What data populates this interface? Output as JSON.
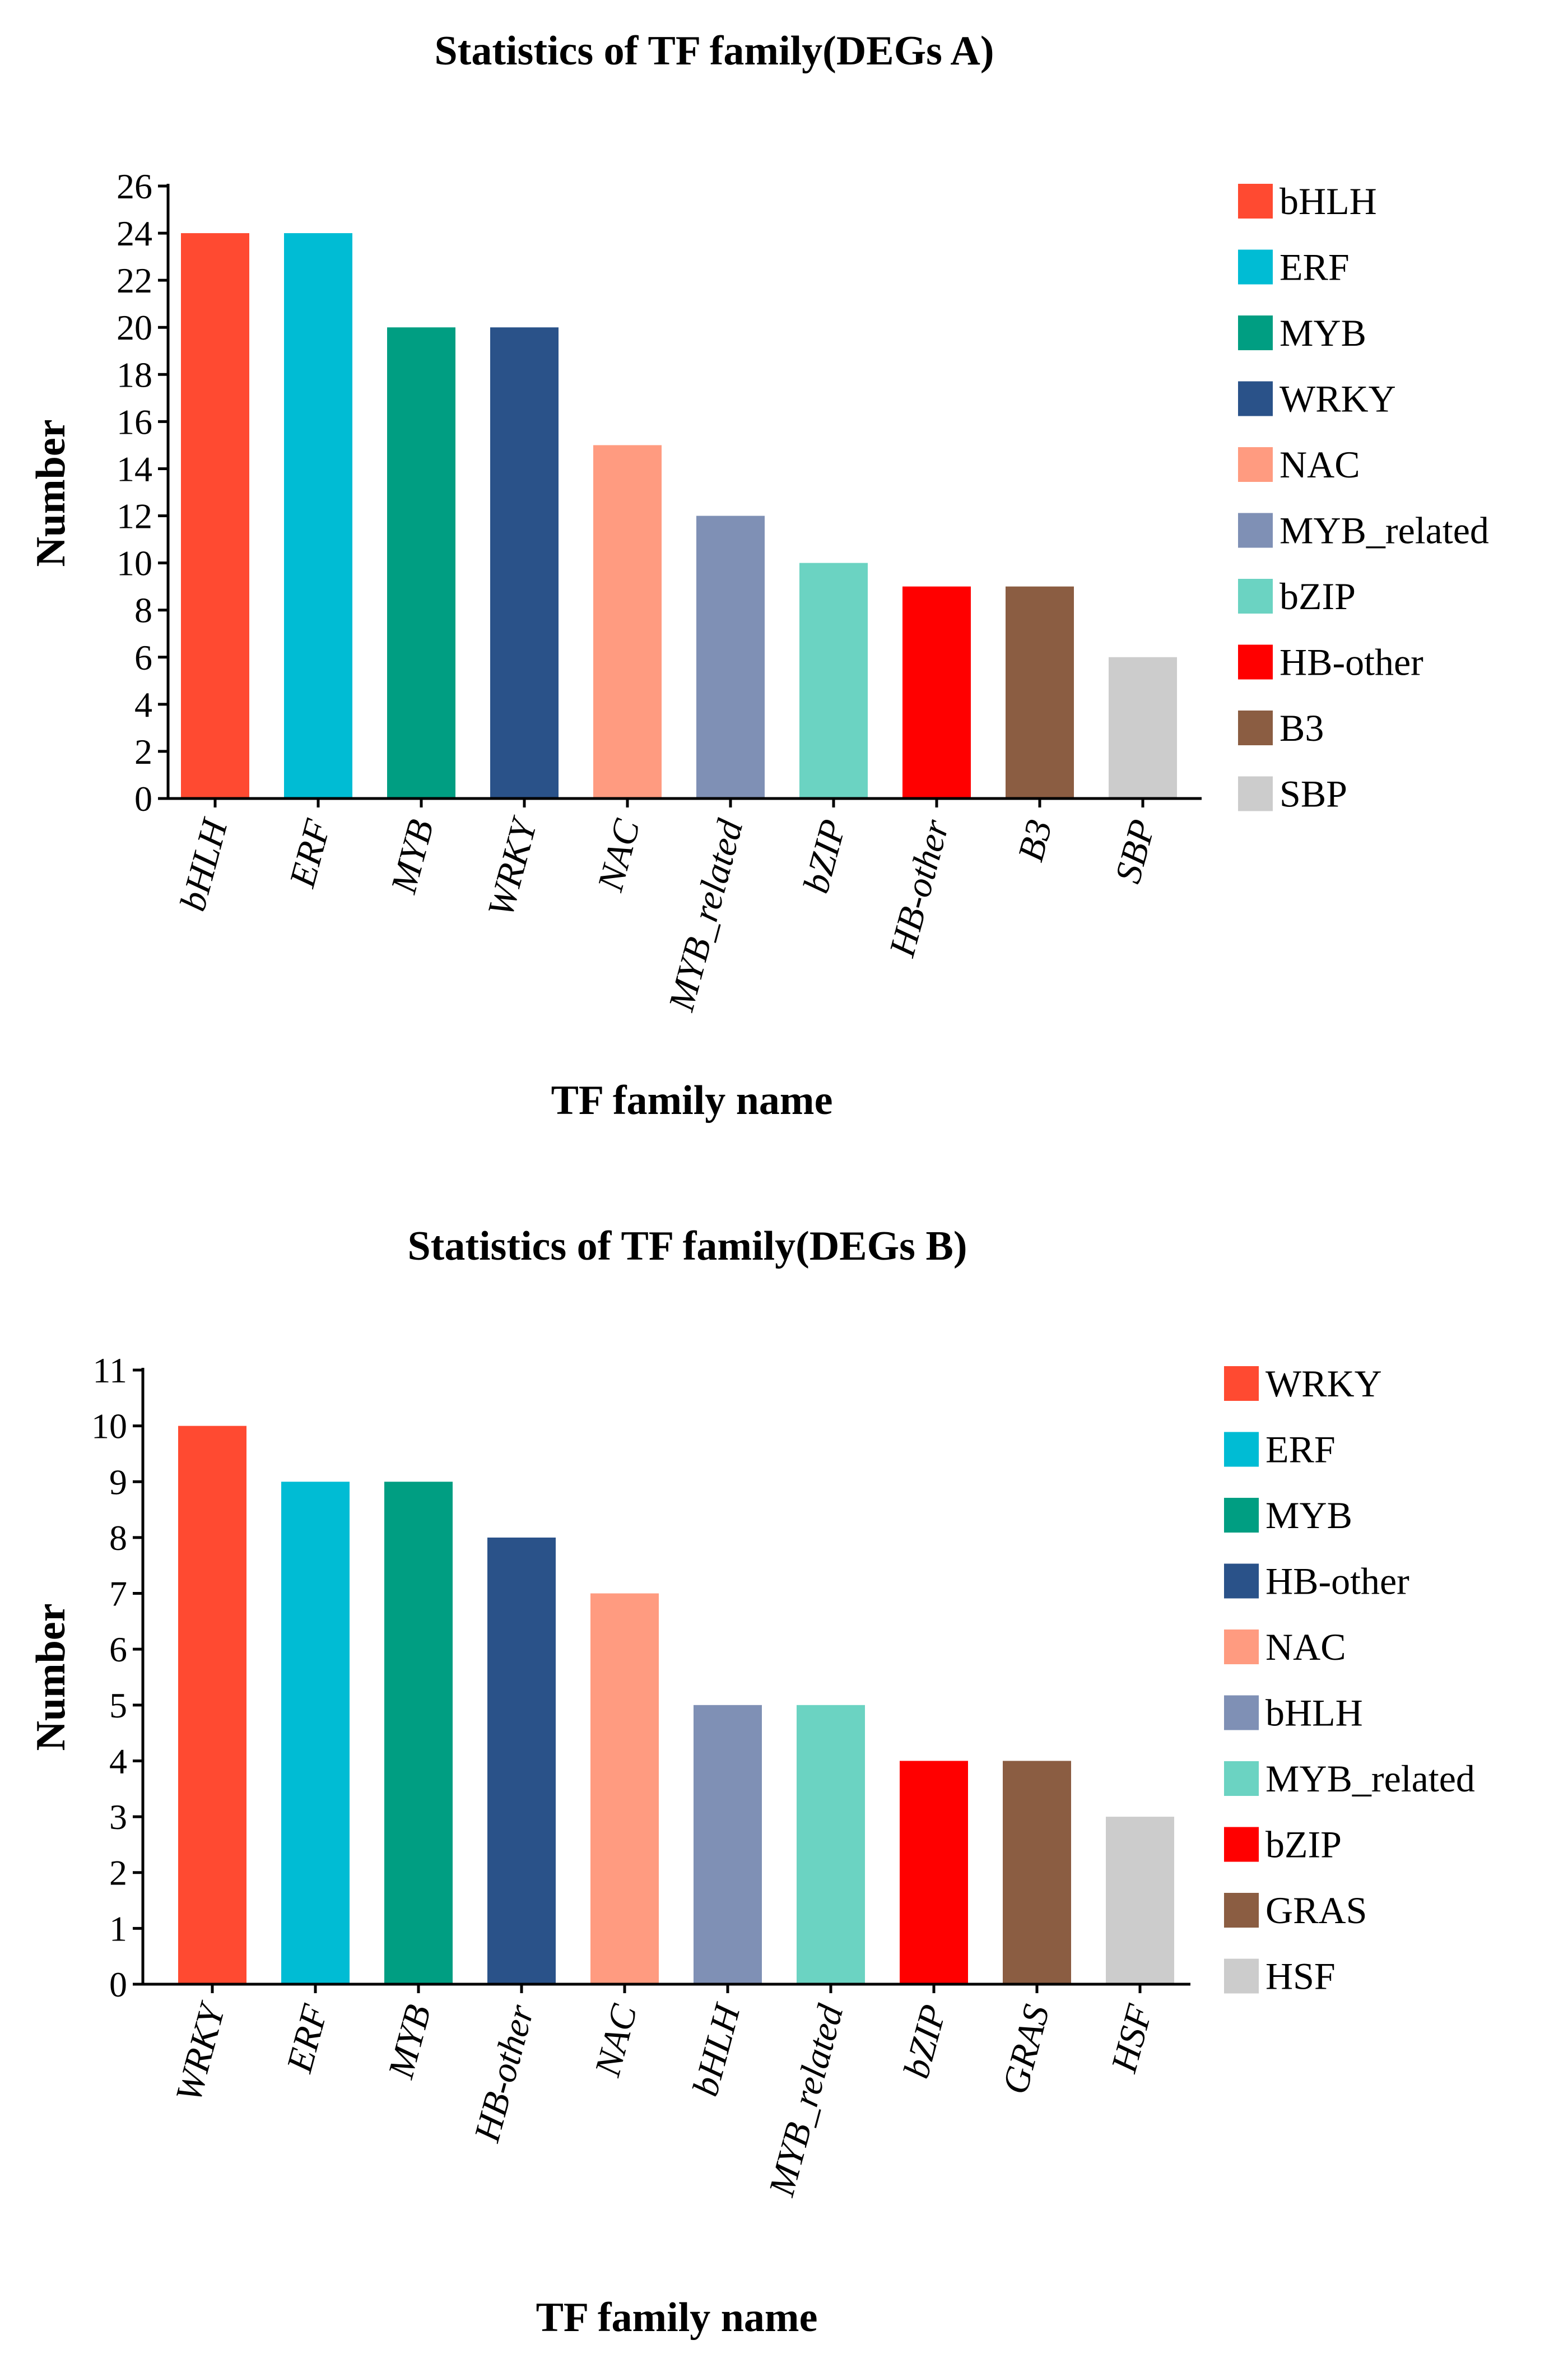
{
  "chart_data": [
    {
      "type": "bar",
      "title": "Statistics of TF family(DEGs A)",
      "xlabel": "TF family name",
      "ylabel": "Number",
      "ylim": [
        0,
        26
      ],
      "yticks": [
        0,
        2,
        4,
        6,
        8,
        10,
        12,
        14,
        16,
        18,
        20,
        22,
        24,
        26
      ],
      "grid": false,
      "legend_position": "right",
      "categories": [
        "bHLH",
        "ERF",
        "MYB",
        "WRKY",
        "NAC",
        "MYB_related",
        "bZIP",
        "HB-other",
        "B3",
        "SBP"
      ],
      "values": [
        24,
        24,
        20,
        20,
        15,
        12,
        10,
        9,
        9,
        6
      ],
      "colors": [
        "#ff4a31",
        "#00bcd4",
        "#009e82",
        "#2a5289",
        "#ff9b80",
        "#7f90b5",
        "#6bd3c2",
        "#ff0000",
        "#8b5d42",
        "#cccccc"
      ]
    },
    {
      "type": "bar",
      "title": "Statistics of TF family(DEGs B)",
      "xlabel": "TF family name",
      "ylabel": "Number",
      "ylim": [
        0,
        11
      ],
      "yticks": [
        0,
        1,
        2,
        3,
        4,
        5,
        6,
        7,
        8,
        9,
        10,
        11
      ],
      "grid": false,
      "legend_position": "right",
      "categories": [
        "WRKY",
        "ERF",
        "MYB",
        "HB-other",
        "NAC",
        "bHLH",
        "MYB_related",
        "bZIP",
        "GRAS",
        "HSF"
      ],
      "values": [
        10,
        9,
        9,
        8,
        7,
        5,
        5,
        4,
        4,
        3
      ],
      "colors": [
        "#ff4a31",
        "#00bcd4",
        "#009e82",
        "#2a5289",
        "#ff9b80",
        "#7f90b5",
        "#6bd3c2",
        "#ff0000",
        "#8b5d42",
        "#cccccc"
      ]
    }
  ]
}
